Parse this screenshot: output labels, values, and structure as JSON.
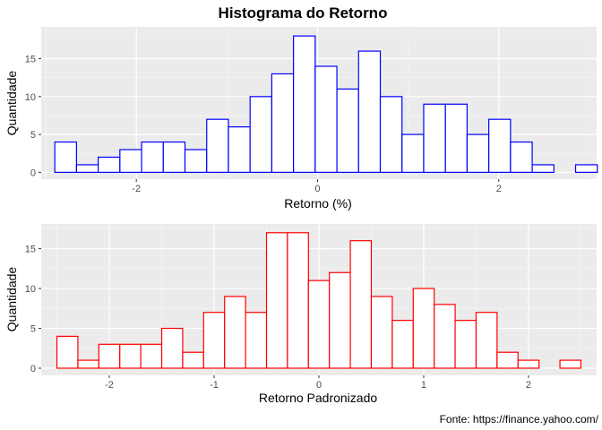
{
  "title": "Histograma do Retorno",
  "caption": "Fonte: https://finance.yahoo.com/",
  "chart_data": [
    {
      "type": "bar",
      "subtype": "histogram",
      "xlabel": "Retorno (%)",
      "ylabel": "Quantidade",
      "bar_color": "#0000ff",
      "fill_color": "#ffffff",
      "panel_bg": "#ebebeb",
      "grid": true,
      "xlim": [
        -3.05,
        3.08
      ],
      "ylim": [
        -0.9,
        19.2
      ],
      "x_ticks": [
        -2,
        0,
        2
      ],
      "x_tick_labels": [
        "-2",
        "0",
        "2"
      ],
      "y_ticks": [
        0,
        5,
        10,
        15
      ],
      "y_tick_labels": [
        "0",
        "5",
        "10",
        "15"
      ],
      "bin_start": -2.9,
      "bin_width": 0.2395,
      "counts": [
        4,
        1,
        2,
        3,
        4,
        4,
        3,
        7,
        6,
        10,
        13,
        18,
        14,
        11,
        16,
        10,
        5,
        9,
        9,
        5,
        7,
        4,
        1,
        0,
        1
      ]
    },
    {
      "type": "bar",
      "subtype": "histogram",
      "xlabel": "Retorno Padronizado",
      "ylabel": "Quantidade",
      "bar_color": "#ff0000",
      "fill_color": "#ffffff",
      "panel_bg": "#ebebeb",
      "grid": true,
      "xlim": [
        -2.65,
        2.65
      ],
      "ylim": [
        -0.9,
        18.1
      ],
      "x_ticks": [
        -2,
        -1,
        0,
        1,
        2
      ],
      "x_tick_labels": [
        "-2",
        "-1",
        "0",
        "1",
        "2"
      ],
      "y_ticks": [
        0,
        5,
        10,
        15
      ],
      "y_tick_labels": [
        "0",
        "5",
        "10",
        "15"
      ],
      "bin_start": -2.5,
      "bin_width": 0.2,
      "counts": [
        4,
        1,
        3,
        3,
        3,
        5,
        2,
        7,
        9,
        7,
        17,
        17,
        11,
        12,
        16,
        9,
        6,
        10,
        8,
        6,
        7,
        2,
        1,
        0,
        1
      ]
    }
  ]
}
